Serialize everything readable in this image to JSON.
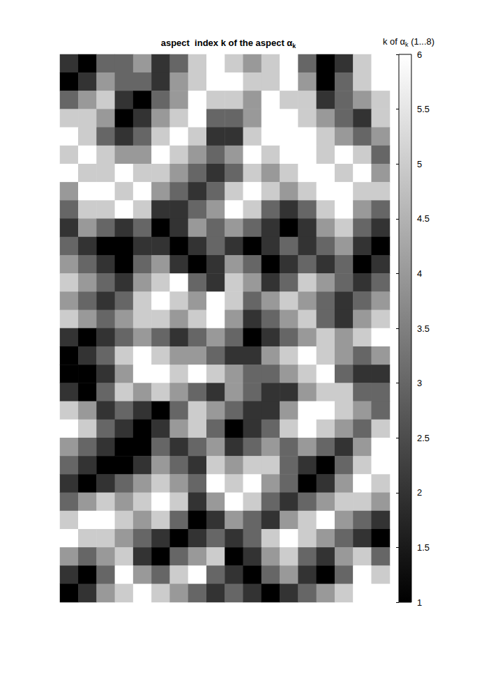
{
  "chart_data": {
    "type": "heatmap",
    "title": "aspect  index k of the aspect αk",
    "tick_labels": false,
    "cells": [
      [
        2,
        1,
        3,
        3,
        4,
        2,
        3,
        5,
        6,
        5,
        4,
        5,
        6,
        3,
        1,
        2,
        5,
        6
      ],
      [
        1,
        2,
        4,
        3,
        3,
        2,
        4,
        5,
        6,
        6,
        5,
        5,
        6,
        4,
        1,
        3,
        5,
        6
      ],
      [
        3,
        4,
        5,
        2,
        1,
        3,
        4,
        6,
        5,
        5,
        4,
        6,
        5,
        5,
        2,
        3,
        4,
        5
      ],
      [
        5,
        5,
        4,
        1,
        2,
        4,
        5,
        6,
        3,
        3,
        4,
        6,
        6,
        5,
        4,
        3,
        2,
        5
      ],
      [
        6,
        5,
        3,
        2,
        3,
        5,
        6,
        5,
        2,
        2,
        5,
        6,
        6,
        6,
        5,
        4,
        3,
        4
      ],
      [
        5,
        6,
        5,
        4,
        4,
        6,
        5,
        4,
        3,
        4,
        6,
        5,
        6,
        6,
        5,
        6,
        5,
        3
      ],
      [
        6,
        5,
        5,
        6,
        5,
        5,
        4,
        3,
        2,
        3,
        5,
        4,
        5,
        6,
        6,
        5,
        6,
        4
      ],
      [
        4,
        6,
        6,
        5,
        6,
        4,
        3,
        2,
        3,
        5,
        6,
        5,
        4,
        5,
        6,
        6,
        5,
        5
      ],
      [
        3,
        5,
        5,
        6,
        5,
        2,
        2,
        3,
        4,
        6,
        5,
        3,
        2,
        3,
        5,
        6,
        4,
        3
      ],
      [
        2,
        4,
        3,
        2,
        3,
        1,
        2,
        4,
        3,
        4,
        3,
        2,
        1,
        2,
        4,
        5,
        3,
        2
      ],
      [
        3,
        2,
        1,
        1,
        2,
        2,
        1,
        2,
        3,
        2,
        1,
        2,
        3,
        2,
        3,
        4,
        2,
        1
      ],
      [
        4,
        3,
        2,
        1,
        3,
        4,
        2,
        1,
        2,
        4,
        3,
        1,
        2,
        3,
        2,
        3,
        1,
        2
      ],
      [
        5,
        4,
        3,
        2,
        4,
        5,
        6,
        3,
        2,
        5,
        4,
        2,
        3,
        5,
        4,
        3,
        2,
        3
      ],
      [
        4,
        3,
        2,
        3,
        5,
        6,
        5,
        4,
        6,
        5,
        3,
        4,
        5,
        4,
        3,
        2,
        3,
        4
      ],
      [
        5,
        4,
        3,
        4,
        5,
        5,
        4,
        5,
        6,
        4,
        2,
        3,
        4,
        5,
        3,
        2,
        4,
        5
      ],
      [
        2,
        1,
        2,
        3,
        4,
        3,
        2,
        3,
        4,
        3,
        1,
        2,
        3,
        4,
        5,
        4,
        5,
        6
      ],
      [
        1,
        2,
        3,
        5,
        6,
        5,
        4,
        4,
        3,
        2,
        2,
        4,
        5,
        6,
        5,
        4,
        3,
        4
      ],
      [
        1,
        1,
        2,
        4,
        6,
        6,
        5,
        6,
        5,
        4,
        3,
        3,
        4,
        5,
        6,
        3,
        2,
        2
      ],
      [
        2,
        1,
        3,
        5,
        4,
        5,
        4,
        3,
        2,
        4,
        3,
        2,
        2,
        4,
        5,
        5,
        3,
        3
      ],
      [
        5,
        4,
        2,
        3,
        2,
        1,
        3,
        5,
        4,
        3,
        2,
        2,
        4,
        6,
        6,
        5,
        4,
        3
      ],
      [
        6,
        5,
        3,
        2,
        1,
        2,
        4,
        5,
        3,
        1,
        2,
        3,
        5,
        6,
        5,
        4,
        3,
        5
      ],
      [
        4,
        3,
        2,
        1,
        1,
        3,
        2,
        3,
        4,
        2,
        3,
        4,
        3,
        4,
        3,
        2,
        4,
        6
      ],
      [
        3,
        2,
        1,
        1,
        2,
        4,
        3,
        2,
        5,
        4,
        5,
        5,
        3,
        2,
        1,
        3,
        5,
        6
      ],
      [
        2,
        1,
        2,
        3,
        4,
        5,
        4,
        3,
        6,
        5,
        6,
        4,
        3,
        1,
        2,
        4,
        6,
        5
      ],
      [
        3,
        4,
        5,
        4,
        5,
        6,
        5,
        2,
        4,
        6,
        5,
        3,
        2,
        3,
        4,
        5,
        5,
        4
      ],
      [
        5,
        6,
        6,
        5,
        4,
        5,
        3,
        1,
        2,
        4,
        3,
        2,
        4,
        5,
        6,
        4,
        3,
        2
      ],
      [
        6,
        5,
        5,
        4,
        3,
        2,
        1,
        2,
        3,
        2,
        3,
        5,
        6,
        5,
        4,
        3,
        2,
        1
      ],
      [
        4,
        3,
        4,
        5,
        2,
        1,
        3,
        4,
        5,
        1,
        2,
        4,
        5,
        3,
        2,
        4,
        5,
        3
      ],
      [
        2,
        1,
        3,
        6,
        4,
        3,
        5,
        6,
        3,
        2,
        1,
        3,
        4,
        2,
        1,
        3,
        6,
        5
      ],
      [
        1,
        2,
        4,
        5,
        6,
        5,
        4,
        3,
        2,
        3,
        2,
        1,
        2,
        3,
        4,
        5,
        6,
        6
      ]
    ],
    "colorbar": {
      "label": "k of αk (1...8)",
      "range": [
        1,
        6
      ],
      "ticks": [
        1,
        1.5,
        2,
        2.5,
        3,
        3.5,
        4,
        4.5,
        5,
        5.5,
        6
      ]
    }
  }
}
